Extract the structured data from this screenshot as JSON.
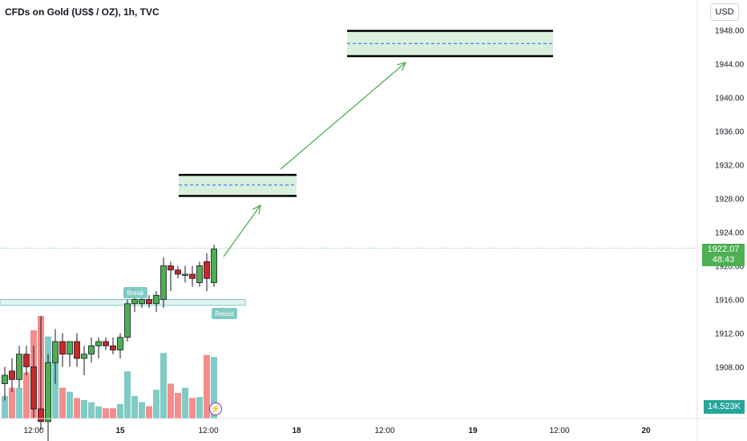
{
  "chart_data": {
    "type": "candlestick",
    "title": "CFDs on Gold (US$ / OZ), 1h, TVC",
    "currency": "USD",
    "last_price": "1922.07",
    "countdown": "48:43",
    "volume_label": "14.523K",
    "y_ticks": [
      "1948.00",
      "1944.00",
      "1940.00",
      "1936.00",
      "1932.00",
      "1928.00",
      "1924.00",
      "1920.00",
      "1916.00",
      "1912.00",
      "1908.00"
    ],
    "x_ticks": [
      "12:00",
      "15",
      "12:00",
      "18",
      "12:00",
      "19",
      "12:00",
      "20"
    ],
    "candles": [
      {
        "o": 1906.0,
        "h": 1908.0,
        "l": 1904.0,
        "c": 1907.0,
        "v": 0.22
      },
      {
        "o": 1907.5,
        "h": 1909.0,
        "l": 1905.0,
        "c": 1906.5,
        "v": 0.3
      },
      {
        "o": 1906.5,
        "h": 1910.5,
        "l": 1905.5,
        "c": 1909.5,
        "v": 0.3
      },
      {
        "o": 1909.5,
        "h": 1910.5,
        "l": 1907.0,
        "c": 1908.0,
        "v": 0.45
      },
      {
        "o": 1908.0,
        "h": 1910.5,
        "l": 1902.0,
        "c": 1903.0,
        "v": 0.86
      },
      {
        "o": 1903.0,
        "h": 1914.0,
        "l": 1900.5,
        "c": 1901.5,
        "v": 1.0
      },
      {
        "o": 1901.5,
        "h": 1909.5,
        "l": 1899.0,
        "c": 1908.5,
        "v": 0.8
      },
      {
        "o": 1908.5,
        "h": 1912.5,
        "l": 1906.0,
        "c": 1911.0,
        "v": 0.58
      },
      {
        "o": 1911.0,
        "h": 1912.0,
        "l": 1908.0,
        "c": 1909.5,
        "v": 0.3
      },
      {
        "o": 1909.5,
        "h": 1911.0,
        "l": 1908.0,
        "c": 1911.0,
        "v": 0.26
      },
      {
        "o": 1911.0,
        "h": 1912.0,
        "l": 1908.0,
        "c": 1909.0,
        "v": 0.2
      },
      {
        "o": 1909.0,
        "h": 1910.5,
        "l": 1907.0,
        "c": 1909.5,
        "v": 0.18
      },
      {
        "o": 1909.5,
        "h": 1911.5,
        "l": 1908.5,
        "c": 1910.5,
        "v": 0.16
      },
      {
        "o": 1910.5,
        "h": 1911.5,
        "l": 1909.0,
        "c": 1911.0,
        "v": 0.12
      },
      {
        "o": 1911.0,
        "h": 1911.5,
        "l": 1910.0,
        "c": 1910.5,
        "v": 0.1
      },
      {
        "o": 1910.5,
        "h": 1911.5,
        "l": 1909.5,
        "c": 1910.0,
        "v": 0.1
      },
      {
        "o": 1910.0,
        "h": 1912.0,
        "l": 1909.0,
        "c": 1911.5,
        "v": 0.14
      },
      {
        "o": 1911.5,
        "h": 1916.0,
        "l": 1911.0,
        "c": 1915.5,
        "v": 0.46
      },
      {
        "o": 1915.5,
        "h": 1916.5,
        "l": 1914.5,
        "c": 1916.0,
        "v": 0.22
      },
      {
        "o": 1915.5,
        "h": 1916.5,
        "l": 1915.0,
        "c": 1916.0,
        "v": 0.16
      },
      {
        "o": 1916.0,
        "h": 1916.5,
        "l": 1915.0,
        "c": 1915.5,
        "v": 0.12
      },
      {
        "o": 1915.5,
        "h": 1917.0,
        "l": 1914.5,
        "c": 1916.5,
        "v": 0.28
      },
      {
        "o": 1916.0,
        "h": 1921.0,
        "l": 1915.0,
        "c": 1920.0,
        "v": 0.64
      },
      {
        "o": 1920.0,
        "h": 1920.5,
        "l": 1917.0,
        "c": 1919.5,
        "v": 0.34
      },
      {
        "o": 1919.5,
        "h": 1920.0,
        "l": 1918.5,
        "c": 1919.0,
        "v": 0.25
      },
      {
        "o": 1919.0,
        "h": 1920.0,
        "l": 1918.0,
        "c": 1919.0,
        "v": 0.3
      },
      {
        "o": 1919.0,
        "h": 1920.0,
        "l": 1917.5,
        "c": 1918.5,
        "v": 0.2
      },
      {
        "o": 1918.0,
        "h": 1920.5,
        "l": 1917.5,
        "c": 1920.0,
        "v": 0.21
      },
      {
        "o": 1920.5,
        "h": 1921.5,
        "l": 1917.0,
        "c": 1918.5,
        "v": 0.62
      },
      {
        "o": 1918.0,
        "h": 1922.5,
        "l": 1917.5,
        "c": 1922.0,
        "v": 0.6
      }
    ],
    "annotations": {
      "support_zone": {
        "top": 1916.0,
        "bottom": 1915.3
      },
      "target_zones": [
        {
          "top": 1930.8,
          "mid": 1929.6,
          "bottom": 1928.3
        },
        {
          "top": 1947.9,
          "mid": 1946.4,
          "bottom": 1944.9
        }
      ],
      "labels": [
        "Break",
        "Retest"
      ]
    }
  },
  "colors": {
    "up": "#4caf50",
    "down": "#c62828",
    "vol_up": "#80cbc4",
    "vol_down": "#f48c8c",
    "zone_fill": "#d8f0dc",
    "arrow": "#4caf50",
    "mid_line": "#2962ff"
  }
}
